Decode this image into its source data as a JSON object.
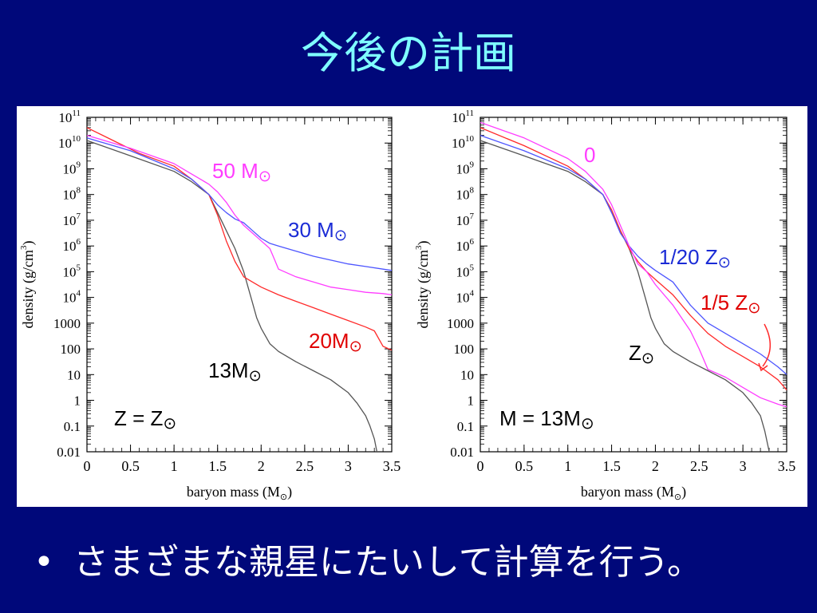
{
  "slide": {
    "title": "今後の計画",
    "bullet": "さまざまな親星にたいして計算を行う。",
    "bullet_symbol": "•",
    "background": "#00087a",
    "title_color": "#7fffff"
  },
  "chart_data": [
    {
      "type": "line",
      "panel": "left",
      "xlabel": "baryon mass (M",
      "xlabel_sub": "⊙",
      "xlabel_tail": ")",
      "ylabel": "density (g/cm",
      "ylabel_sup": "3",
      "ylabel_tail": ")",
      "xlim": [
        0,
        3.5
      ],
      "ylim_log10": [
        -2,
        11
      ],
      "yscale": "log",
      "xticks": [
        0,
        0.5,
        1,
        1.5,
        2,
        2.5,
        3,
        3.5
      ],
      "xtick_labels": [
        "0",
        "0.5",
        "1",
        "1.5",
        "2",
        "2.5",
        "3",
        "3.5"
      ],
      "yticks": [
        {
          "exp": 11,
          "base": "10",
          "sup": "11"
        },
        {
          "exp": 10,
          "base": "10",
          "sup": "10"
        },
        {
          "exp": 9,
          "base": "10",
          "sup": "9"
        },
        {
          "exp": 8,
          "base": "10",
          "sup": "8"
        },
        {
          "exp": 7,
          "base": "10",
          "sup": "7"
        },
        {
          "exp": 6,
          "base": "10",
          "sup": "6"
        },
        {
          "exp": 5,
          "base": "10",
          "sup": "5"
        },
        {
          "exp": 4,
          "base": "10",
          "sup": "4"
        },
        {
          "exp": 3,
          "base": "1000",
          "sup": ""
        },
        {
          "exp": 2,
          "base": "100",
          "sup": ""
        },
        {
          "exp": 1,
          "base": "10",
          "sup": ""
        },
        {
          "exp": 0,
          "base": "1",
          "sup": ""
        },
        {
          "exp": -1,
          "base": "0.1",
          "sup": ""
        },
        {
          "exp": -2,
          "base": "0.01",
          "sup": ""
        }
      ],
      "condition_label": "Z = Z⊙",
      "series": [
        {
          "name": "13M⊙",
          "color": "#555555",
          "x": [
            0,
            0.5,
            1.0,
            1.2,
            1.4,
            1.5,
            1.6,
            1.7,
            1.8,
            1.85,
            1.9,
            1.95,
            2.0,
            2.1,
            2.2,
            2.4,
            2.6,
            2.8,
            3.0,
            3.1,
            3.2,
            3.25,
            3.3,
            3.33
          ],
          "log10_y": [
            10.1,
            9.5,
            8.9,
            8.5,
            8.0,
            7.3,
            6.6,
            5.9,
            5.0,
            4.4,
            3.8,
            3.2,
            2.8,
            2.2,
            1.9,
            1.5,
            1.15,
            0.8,
            0.3,
            -0.1,
            -0.6,
            -1.0,
            -1.5,
            -2.0
          ]
        },
        {
          "name": "20M⊙",
          "color": "#ff2a2a",
          "x": [
            0,
            0.3,
            0.6,
            1.0,
            1.2,
            1.4,
            1.5,
            1.6,
            1.7,
            1.8,
            1.85,
            1.9,
            2.0,
            2.2,
            2.4,
            2.6,
            2.8,
            3.0,
            3.2,
            3.3,
            3.4,
            3.5
          ],
          "log10_y": [
            10.6,
            10.1,
            9.6,
            9.1,
            8.6,
            8.0,
            7.2,
            6.2,
            5.4,
            4.8,
            4.7,
            4.6,
            4.4,
            4.1,
            3.85,
            3.6,
            3.35,
            3.1,
            2.85,
            2.7,
            2.1,
            1.95
          ]
        },
        {
          "name": "30 M⊙",
          "color": "#4d55ff",
          "x": [
            0,
            0.5,
            1.0,
            1.2,
            1.4,
            1.5,
            1.6,
            1.7,
            1.8,
            1.9,
            2.0,
            2.1,
            2.2,
            2.4,
            2.6,
            2.8,
            3.0,
            3.2,
            3.4,
            3.5
          ],
          "log10_y": [
            10.2,
            9.7,
            9.0,
            8.6,
            8.0,
            7.6,
            7.3,
            7.05,
            6.9,
            6.6,
            6.3,
            6.1,
            6.0,
            5.8,
            5.6,
            5.45,
            5.3,
            5.2,
            5.1,
            5.05
          ]
        },
        {
          "name": "50 M⊙",
          "color": "#ff3cff",
          "x": [
            0,
            0.5,
            1.0,
            1.2,
            1.4,
            1.5,
            1.6,
            1.7,
            1.8,
            1.9,
            2.0,
            2.1,
            2.15,
            2.2,
            2.4,
            2.6,
            2.8,
            3.0,
            3.2,
            3.4,
            3.5
          ],
          "log10_y": [
            10.3,
            9.8,
            9.2,
            8.8,
            8.4,
            8.1,
            7.7,
            7.2,
            6.8,
            6.5,
            6.2,
            5.9,
            5.5,
            5.1,
            4.8,
            4.6,
            4.4,
            4.3,
            4.2,
            4.15,
            4.1
          ]
        }
      ],
      "annotations": [
        {
          "text": "50 M⊙",
          "color": "#ff3cff"
        },
        {
          "text": "30 M⊙",
          "color": "#1a2bd6"
        },
        {
          "text": "20M⊙",
          "color": "#e00000"
        },
        {
          "text": "13M⊙",
          "color": "#000000"
        }
      ]
    },
    {
      "type": "line",
      "panel": "right",
      "xlabel": "baryon mass (M",
      "xlabel_sub": "⊙",
      "xlabel_tail": ")",
      "ylabel": "density (g/cm",
      "ylabel_sup": "3",
      "ylabel_tail": ")",
      "xlim": [
        0,
        3.5
      ],
      "ylim_log10": [
        -2,
        11
      ],
      "yscale": "log",
      "xticks": [
        0,
        0.5,
        1,
        1.5,
        2,
        2.5,
        3,
        3.5
      ],
      "xtick_labels": [
        "0",
        "0.5",
        "1",
        "1.5",
        "2",
        "2.5",
        "3",
        "3.5"
      ],
      "yticks": [
        {
          "exp": 11,
          "base": "10",
          "sup": "11"
        },
        {
          "exp": 10,
          "base": "10",
          "sup": "10"
        },
        {
          "exp": 9,
          "base": "10",
          "sup": "9"
        },
        {
          "exp": 8,
          "base": "10",
          "sup": "8"
        },
        {
          "exp": 7,
          "base": "10",
          "sup": "7"
        },
        {
          "exp": 6,
          "base": "10",
          "sup": "6"
        },
        {
          "exp": 5,
          "base": "10",
          "sup": "5"
        },
        {
          "exp": 4,
          "base": "10",
          "sup": "4"
        },
        {
          "exp": 3,
          "base": "1000",
          "sup": ""
        },
        {
          "exp": 2,
          "base": "100",
          "sup": ""
        },
        {
          "exp": 1,
          "base": "10",
          "sup": ""
        },
        {
          "exp": 0,
          "base": "1",
          "sup": ""
        },
        {
          "exp": -1,
          "base": "0.1",
          "sup": ""
        },
        {
          "exp": -2,
          "base": "0.01",
          "sup": ""
        }
      ],
      "condition_label": "M = 13M⊙",
      "series": [
        {
          "name": "Z⊙",
          "color": "#555555",
          "x": [
            0,
            0.5,
            1.0,
            1.2,
            1.4,
            1.5,
            1.6,
            1.7,
            1.8,
            1.85,
            1.9,
            1.95,
            2.0,
            2.1,
            2.2,
            2.4,
            2.6,
            2.8,
            3.0,
            3.1,
            3.2,
            3.25,
            3.3
          ],
          "log10_y": [
            10.1,
            9.5,
            8.9,
            8.5,
            8.0,
            7.3,
            6.6,
            5.9,
            5.0,
            4.4,
            3.8,
            3.2,
            2.8,
            2.2,
            1.9,
            1.5,
            1.15,
            0.8,
            0.3,
            -0.1,
            -0.6,
            -1.2,
            -2.0
          ]
        },
        {
          "name": "1/5 Z⊙",
          "color": "#ff2a2a",
          "x": [
            0,
            0.5,
            1.0,
            1.2,
            1.4,
            1.5,
            1.6,
            1.7,
            1.8,
            1.9,
            2.0,
            2.2,
            2.4,
            2.6,
            2.8,
            3.0,
            3.2,
            3.4,
            3.5
          ],
          "log10_y": [
            10.6,
            9.9,
            9.1,
            8.6,
            8.0,
            7.4,
            6.6,
            5.9,
            5.4,
            5.0,
            4.7,
            4.1,
            3.3,
            2.6,
            2.1,
            1.7,
            1.3,
            0.8,
            0.4
          ]
        },
        {
          "name": "1/20 Z⊙",
          "color": "#4d55ff",
          "x": [
            0,
            0.5,
            1.0,
            1.2,
            1.4,
            1.5,
            1.6,
            1.7,
            1.8,
            1.9,
            2.0,
            2.2,
            2.4,
            2.6,
            2.8,
            3.0,
            3.2,
            3.4,
            3.5
          ],
          "log10_y": [
            10.3,
            9.7,
            9.0,
            8.6,
            8.0,
            7.3,
            6.5,
            6.0,
            5.6,
            5.3,
            5.05,
            4.6,
            3.7,
            3.0,
            2.6,
            2.2,
            1.8,
            1.3,
            1.0
          ]
        },
        {
          "name": "0",
          "color": "#ff3cff",
          "x": [
            0,
            0.5,
            1.0,
            1.2,
            1.4,
            1.5,
            1.6,
            1.7,
            1.8,
            1.9,
            2.0,
            2.2,
            2.4,
            2.5,
            2.6,
            2.8,
            3.0,
            3.2,
            3.4,
            3.5
          ],
          "log10_y": [
            10.8,
            10.2,
            9.4,
            8.9,
            8.2,
            7.6,
            6.8,
            6.0,
            5.3,
            5.0,
            4.5,
            3.7,
            2.7,
            2.0,
            1.2,
            0.9,
            0.5,
            0.1,
            -0.15,
            -0.25
          ]
        }
      ],
      "annotations": [
        {
          "text": "0",
          "color": "#ff3cff"
        },
        {
          "text": "1/20 Z⊙",
          "color": "#1a2bd6"
        },
        {
          "text": "1/5 Z⊙",
          "color": "#e00000"
        },
        {
          "text": "Z⊙",
          "color": "#000000"
        }
      ]
    }
  ]
}
